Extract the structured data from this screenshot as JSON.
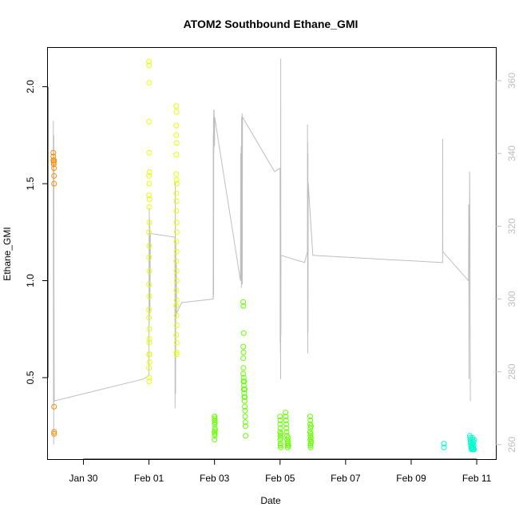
{
  "chart_data": {
    "type": "scatter",
    "title": "ATOM2 Southbound Ethane_GMI",
    "xlabel": "Date",
    "ylabel": "Ethane_GMI",
    "x_ticks": [
      "Jan 30",
      "Feb 01",
      "Feb 03",
      "Feb 05",
      "Feb 07",
      "Feb 09",
      "Feb 11"
    ],
    "y_ticks": [
      "0.5",
      "1.0",
      "1.5",
      "2.0"
    ],
    "y2_ticks": [
      "260",
      "280",
      "300",
      "320",
      "340",
      "360"
    ],
    "xlim": [
      "2017-01-28T22:00",
      "2017-02-11T14:00"
    ],
    "ylim": [
      0.08,
      2.2
    ],
    "y2lim": [
      256,
      369
    ],
    "grid": false,
    "series": [
      {
        "color": "#FF8C00",
        "points": [
          [
            "2017-01-29T02:00",
            1.66
          ],
          [
            "2017-01-29T02:00",
            1.64
          ],
          [
            "2017-01-29T02:00",
            1.62
          ],
          [
            "2017-01-29T02:15",
            1.61
          ],
          [
            "2017-01-29T02:15",
            1.6
          ],
          [
            "2017-01-29T02:30",
            1.58
          ],
          [
            "2017-01-29T02:30",
            1.62
          ],
          [
            "2017-01-29T02:30",
            1.54
          ],
          [
            "2017-01-29T02:30",
            1.5
          ],
          [
            "2017-01-29T02:30",
            0.35
          ],
          [
            "2017-01-29T02:30",
            0.22
          ],
          [
            "2017-01-29T02:30",
            0.21
          ]
        ]
      },
      {
        "color": "#E6FF00",
        "points": [
          [
            "2017-02-01T00:00",
            2.13
          ],
          [
            "2017-02-01T00:05",
            2.11
          ],
          [
            "2017-02-01T00:10",
            2.02
          ],
          [
            "2017-02-01T00:00",
            1.82
          ],
          [
            "2017-02-01T00:10",
            1.66
          ],
          [
            "2017-02-01T00:00",
            1.54
          ],
          [
            "2017-02-01T00:15",
            1.5
          ],
          [
            "2017-02-01T00:05",
            1.44
          ],
          [
            "2017-02-01T00:10",
            1.38
          ],
          [
            "2017-02-01T00:20",
            1.3
          ],
          [
            "2017-02-01T00:00",
            1.25
          ],
          [
            "2017-02-01T00:10",
            1.18
          ],
          [
            "2017-02-01T00:05",
            1.12
          ],
          [
            "2017-02-01T00:15",
            1.05
          ],
          [
            "2017-02-01T00:00",
            0.98
          ],
          [
            "2017-02-01T00:10",
            0.92
          ],
          [
            "2017-02-01T00:05",
            0.85
          ],
          [
            "2017-02-01T00:00",
            0.81
          ],
          [
            "2017-02-01T00:15",
            0.75
          ],
          [
            "2017-02-01T00:10",
            0.68
          ],
          [
            "2017-02-01T00:05",
            0.62
          ],
          [
            "2017-02-01T00:20",
            0.58
          ],
          [
            "2017-02-01T00:00",
            0.55
          ],
          [
            "2017-02-01T00:10",
            0.5
          ],
          [
            "2017-02-01T00:15",
            0.48
          ],
          [
            "2017-02-01T00:25",
            1.56
          ],
          [
            "2017-02-01T00:20",
            1.42
          ],
          [
            "2017-02-01T00:25",
            0.62
          ],
          [
            "2017-02-01T00:20",
            0.7
          ],
          [
            "2017-02-01T20:00",
            1.9
          ],
          [
            "2017-02-01T20:10",
            1.87
          ],
          [
            "2017-02-01T20:05",
            1.8
          ],
          [
            "2017-02-01T20:00",
            1.75
          ],
          [
            "2017-02-01T20:15",
            1.71
          ],
          [
            "2017-02-01T20:05",
            1.65
          ],
          [
            "2017-02-01T20:00",
            1.55
          ],
          [
            "2017-02-01T20:10",
            1.52
          ],
          [
            "2017-02-01T20:20",
            1.5
          ],
          [
            "2017-02-01T20:05",
            1.45
          ],
          [
            "2017-02-01T20:15",
            1.41
          ],
          [
            "2017-02-01T20:00",
            1.36
          ],
          [
            "2017-02-01T20:10",
            1.3
          ],
          [
            "2017-02-01T20:20",
            1.25
          ],
          [
            "2017-02-01T20:05",
            1.2
          ],
          [
            "2017-02-01T20:15",
            1.15
          ],
          [
            "2017-02-01T20:00",
            1.1
          ],
          [
            "2017-02-01T20:10",
            1.05
          ],
          [
            "2017-02-01T20:20",
            1.0
          ],
          [
            "2017-02-01T20:05",
            0.95
          ],
          [
            "2017-02-01T20:15",
            0.9
          ],
          [
            "2017-02-01T20:00",
            0.87
          ],
          [
            "2017-02-01T20:10",
            0.82
          ],
          [
            "2017-02-01T20:20",
            0.77
          ],
          [
            "2017-02-01T20:05",
            0.72
          ],
          [
            "2017-02-01T20:15",
            0.68
          ],
          [
            "2017-02-01T20:10",
            0.63
          ],
          [
            "2017-02-01T20:20",
            0.62
          ]
        ]
      },
      {
        "color": "#66FF00",
        "points": [
          [
            "2017-02-03T00:00",
            0.3
          ],
          [
            "2017-02-03T00:10",
            0.28
          ],
          [
            "2017-02-03T00:05",
            0.26
          ],
          [
            "2017-02-03T00:15",
            0.24
          ],
          [
            "2017-02-03T00:00",
            0.22
          ],
          [
            "2017-02-03T00:10",
            0.2
          ],
          [
            "2017-02-03T00:05",
            0.18
          ],
          [
            "2017-02-03T00:20",
            0.27
          ],
          [
            "2017-02-03T00:25",
            0.23
          ],
          [
            "2017-02-03T00:20",
            0.21
          ],
          [
            "2017-02-03T00:15",
            0.29
          ],
          [
            "2017-02-03T21:00",
            0.89
          ],
          [
            "2017-02-03T21:10",
            0.87
          ],
          [
            "2017-02-03T21:20",
            0.73
          ],
          [
            "2017-02-03T21:05",
            0.66
          ],
          [
            "2017-02-03T21:15",
            0.63
          ],
          [
            "2017-02-03T21:00",
            0.6
          ],
          [
            "2017-02-03T21:10",
            0.55
          ],
          [
            "2017-02-03T21:05",
            0.52
          ],
          [
            "2017-02-03T21:20",
            0.5
          ],
          [
            "2017-02-03T21:15",
            0.48
          ],
          [
            "2017-02-03T21:25",
            0.46
          ],
          [
            "2017-02-03T21:30",
            0.44
          ],
          [
            "2017-02-03T21:40",
            0.42
          ],
          [
            "2017-02-03T21:50",
            0.4
          ],
          [
            "2017-02-03T22:00",
            0.38
          ],
          [
            "2017-02-03T22:10",
            0.35
          ],
          [
            "2017-02-03T22:20",
            0.33
          ],
          [
            "2017-02-03T22:30",
            0.3
          ],
          [
            "2017-02-03T22:35",
            0.27
          ],
          [
            "2017-02-03T22:40",
            0.25
          ],
          [
            "2017-02-03T22:45",
            0.2
          ],
          [
            "2017-02-03T21:45",
            0.48
          ],
          [
            "2017-02-03T22:05",
            0.44
          ],
          [
            "2017-02-03T22:15",
            0.4
          ],
          [
            "2017-02-05T00:00",
            0.3
          ],
          [
            "2017-02-05T00:10",
            0.28
          ],
          [
            "2017-02-05T00:05",
            0.26
          ],
          [
            "2017-02-05T00:15",
            0.24
          ],
          [
            "2017-02-05T00:00",
            0.22
          ],
          [
            "2017-02-05T00:10",
            0.2
          ],
          [
            "2017-02-05T00:05",
            0.18
          ],
          [
            "2017-02-05T00:20",
            0.16
          ],
          [
            "2017-02-05T00:15",
            0.15
          ],
          [
            "2017-02-05T00:25",
            0.14
          ],
          [
            "2017-02-05T00:30",
            0.21
          ],
          [
            "2017-02-05T00:35",
            0.19
          ],
          [
            "2017-02-05T04:00",
            0.32
          ],
          [
            "2017-02-05T04:10",
            0.3
          ],
          [
            "2017-02-05T04:20",
            0.28
          ],
          [
            "2017-02-05T04:30",
            0.26
          ],
          [
            "2017-02-05T04:40",
            0.24
          ],
          [
            "2017-02-05T04:50",
            0.22
          ],
          [
            "2017-02-05T05:00",
            0.2
          ],
          [
            "2017-02-05T05:10",
            0.18
          ],
          [
            "2017-02-05T05:20",
            0.16
          ],
          [
            "2017-02-05T05:30",
            0.14
          ],
          [
            "2017-02-05T05:40",
            0.15
          ],
          [
            "2017-02-05T05:50",
            0.17
          ],
          [
            "2017-02-05T06:00",
            0.19
          ],
          [
            "2017-02-05T06:10",
            0.15
          ],
          [
            "2017-02-05T22:00",
            0.3
          ],
          [
            "2017-02-05T22:10",
            0.28
          ],
          [
            "2017-02-05T22:05",
            0.26
          ],
          [
            "2017-02-05T22:15",
            0.24
          ],
          [
            "2017-02-05T22:00",
            0.22
          ],
          [
            "2017-02-05T22:10",
            0.2
          ],
          [
            "2017-02-05T22:05",
            0.18
          ],
          [
            "2017-02-05T22:20",
            0.16
          ],
          [
            "2017-02-05T22:15",
            0.15
          ],
          [
            "2017-02-05T22:25",
            0.14
          ],
          [
            "2017-02-05T22:30",
            0.21
          ],
          [
            "2017-02-05T22:35",
            0.19
          ],
          [
            "2017-02-05T22:40",
            0.25
          ],
          [
            "2017-02-05T22:45",
            0.17
          ]
        ]
      },
      {
        "color": "#00FFCC",
        "points": [
          [
            "2017-02-10T00:00",
            0.16
          ],
          [
            "2017-02-10T00:00",
            0.14
          ],
          [
            "2017-02-10T19:00",
            0.2
          ],
          [
            "2017-02-10T19:10",
            0.19
          ],
          [
            "2017-02-10T19:20",
            0.18
          ],
          [
            "2017-02-10T19:30",
            0.17
          ],
          [
            "2017-02-10T19:40",
            0.16
          ],
          [
            "2017-02-10T19:50",
            0.15
          ],
          [
            "2017-02-10T20:00",
            0.14
          ],
          [
            "2017-02-10T20:10",
            0.13
          ],
          [
            "2017-02-10T20:20",
            0.14
          ],
          [
            "2017-02-10T20:30",
            0.15
          ],
          [
            "2017-02-10T20:40",
            0.18
          ],
          [
            "2017-02-10T20:50",
            0.19
          ],
          [
            "2017-02-10T21:00",
            0.13
          ],
          [
            "2017-02-10T21:10",
            0.16
          ],
          [
            "2017-02-10T21:20",
            0.14
          ],
          [
            "2017-02-10T21:30",
            0.13
          ],
          [
            "2017-02-10T21:40",
            0.17
          ],
          [
            "2017-02-10T21:50",
            0.15
          ],
          [
            "2017-02-10T22:00",
            0.13
          ],
          [
            "2017-02-10T22:10",
            0.18
          ]
        ]
      }
    ],
    "line_series": {
      "color": "#bebebe",
      "points": [
        [
          "2017-01-29T02:00",
          349
        ],
        [
          "2017-01-29T02:05",
          270
        ],
        [
          "2017-01-29T02:10",
          335
        ],
        [
          "2017-01-29T02:15",
          260
        ],
        [
          "2017-01-29T02:20",
          345
        ],
        [
          "2017-01-29T02:25",
          300
        ],
        [
          "2017-01-29T02:30",
          290
        ],
        [
          "2017-01-29T02:40",
          272
        ],
        [
          "2017-01-31T20:00",
          278
        ],
        [
          "2017-02-01T00:00",
          279
        ],
        [
          "2017-02-01T00:05",
          318
        ],
        [
          "2017-02-01T00:10",
          293
        ],
        [
          "2017-02-01T00:15",
          325
        ],
        [
          "2017-02-01T00:20",
          298
        ],
        [
          "2017-02-01T00:25",
          322
        ],
        [
          "2017-02-01T00:30",
          306
        ],
        [
          "2017-02-01T00:35",
          320
        ],
        [
          "2017-02-01T00:40",
          296
        ],
        [
          "2017-02-01T01:00",
          318
        ],
        [
          "2017-02-01T19:00",
          317
        ],
        [
          "2017-02-01T19:10",
          270
        ],
        [
          "2017-02-01T19:20",
          332
        ],
        [
          "2017-02-01T19:30",
          274
        ],
        [
          "2017-02-01T19:40",
          316
        ],
        [
          "2017-02-01T19:50",
          295
        ],
        [
          "2017-02-01T20:00",
          310
        ],
        [
          "2017-02-01T20:10",
          296
        ],
        [
          "2017-02-02T00:00",
          299
        ],
        [
          "2017-02-02T23:00",
          300
        ],
        [
          "2017-02-02T23:05",
          345
        ],
        [
          "2017-02-02T23:10",
          300
        ],
        [
          "2017-02-02T23:15",
          350
        ],
        [
          "2017-02-02T23:20",
          301
        ],
        [
          "2017-02-02T23:25",
          352
        ],
        [
          "2017-02-02T23:30",
          340
        ],
        [
          "2017-02-02T23:40",
          352
        ],
        [
          "2017-02-03T00:00",
          342
        ],
        [
          "2017-02-03T00:10",
          350
        ],
        [
          "2017-02-03T03:00",
          343
        ],
        [
          "2017-02-03T19:00",
          305
        ],
        [
          "2017-02-03T19:10",
          340
        ],
        [
          "2017-02-03T19:20",
          305
        ],
        [
          "2017-02-03T19:30",
          342
        ],
        [
          "2017-02-03T19:40",
          303
        ],
        [
          "2017-02-03T19:50",
          350
        ],
        [
          "2017-02-03T20:00",
          305
        ],
        [
          "2017-02-03T20:10",
          351
        ],
        [
          "2017-02-03T20:20",
          304
        ],
        [
          "2017-02-03T20:30",
          350
        ],
        [
          "2017-02-04T20:00",
          335
        ],
        [
          "2017-02-05T00:00",
          336
        ],
        [
          "2017-02-05T00:05",
          288
        ],
        [
          "2017-02-05T00:10",
          335
        ],
        [
          "2017-02-05T00:15",
          285
        ],
        [
          "2017-02-05T00:20",
          333
        ],
        [
          "2017-02-05T00:25",
          278
        ],
        [
          "2017-02-05T00:30",
          366
        ],
        [
          "2017-02-05T00:35",
          290
        ],
        [
          "2017-02-05T00:40",
          312
        ],
        [
          "2017-02-05T18:00",
          310
        ],
        [
          "2017-02-05T20:00",
          313
        ],
        [
          "2017-02-05T20:05",
          348
        ],
        [
          "2017-02-05T20:10",
          290
        ],
        [
          "2017-02-05T20:15",
          343
        ],
        [
          "2017-02-05T20:20",
          285
        ],
        [
          "2017-02-05T20:25",
          340
        ],
        [
          "2017-02-05T20:30",
          291
        ],
        [
          "2017-02-05T20:35",
          332
        ],
        [
          "2017-02-06T00:00",
          312
        ],
        [
          "2017-02-09T23:00",
          310
        ],
        [
          "2017-02-09T23:05",
          344
        ],
        [
          "2017-02-09T23:10",
          313
        ],
        [
          "2017-02-10T18:00",
          305
        ],
        [
          "2017-02-10T18:10",
          326
        ],
        [
          "2017-02-10T18:20",
          278
        ],
        [
          "2017-02-10T18:30",
          324
        ],
        [
          "2017-02-10T18:40",
          318
        ],
        [
          "2017-02-10T18:50",
          335
        ],
        [
          "2017-02-10T19:00",
          321
        ],
        [
          "2017-02-10T19:10",
          296
        ],
        [
          "2017-02-10T19:20",
          272
        ]
      ]
    }
  }
}
